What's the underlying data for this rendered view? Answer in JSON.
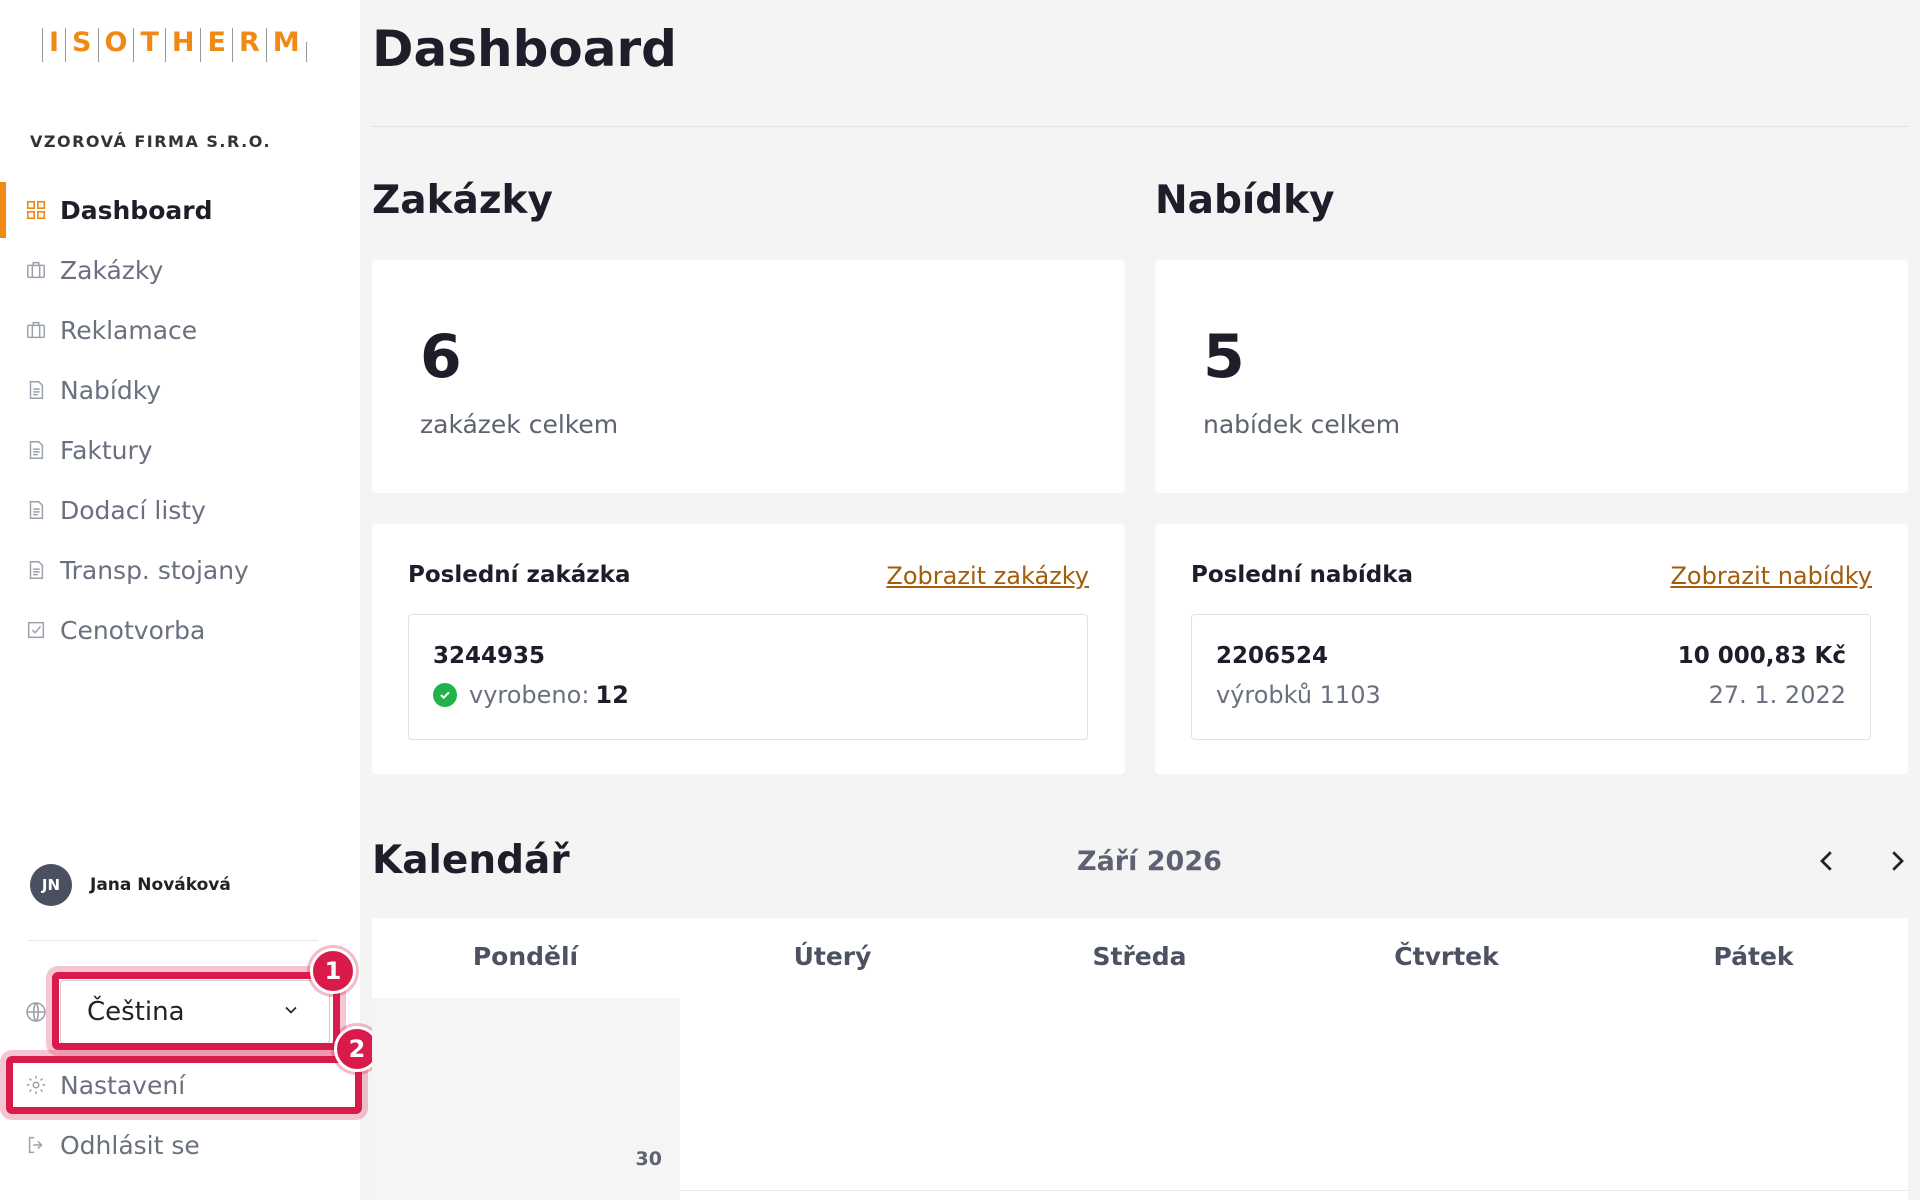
{
  "brand": {
    "logo_letters": [
      "I",
      "S",
      "O",
      "T",
      "H",
      "E",
      "R",
      "M"
    ],
    "accent": "#ef8a17"
  },
  "sidebar": {
    "company": "VZOROVÁ FIRMA S.R.O.",
    "items": [
      {
        "label": "Dashboard",
        "icon": "grid-icon",
        "active": true
      },
      {
        "label": "Zakázky",
        "icon": "briefcase-icon"
      },
      {
        "label": "Reklamace",
        "icon": "briefcase-icon"
      },
      {
        "label": "Nabídky",
        "icon": "document-icon"
      },
      {
        "label": "Faktury",
        "icon": "document-icon"
      },
      {
        "label": "Dodací listy",
        "icon": "document-icon"
      },
      {
        "label": "Transp. stojany",
        "icon": "document-icon"
      },
      {
        "label": "Cenotvorba",
        "icon": "checkbox-icon"
      }
    ],
    "user": {
      "initials": "JN",
      "name": "Jana Nováková"
    },
    "language": {
      "value": "Čeština"
    },
    "settings_label": "Nastavení",
    "logout_label": "Odhlásit se",
    "annotations": [
      "1",
      "2"
    ]
  },
  "main": {
    "title": "Dashboard",
    "orders": {
      "title": "Zakázky",
      "count": "6",
      "count_label": "zakázek celkem",
      "last_label": "Poslední zakázka",
      "link": "Zobrazit zakázky",
      "last": {
        "id": "3244935",
        "status": "vyrobeno:",
        "qty": "12"
      }
    },
    "offers": {
      "title": "Nabídky",
      "count": "5",
      "count_label": "nabídek celkem",
      "last_label": "Poslední nabídka",
      "link": "Zobrazit nabídky",
      "last": {
        "id": "2206524",
        "products": "výrobků 1103",
        "price": "10 000,83 Kč",
        "date": "27. 1. 2022"
      }
    },
    "calendar": {
      "title": "Kalendář",
      "month": "Září 2026",
      "days": [
        "Pondělí",
        "Úterý",
        "Středa",
        "Čtvrtek",
        "Pátek"
      ],
      "first_day": "30"
    }
  }
}
